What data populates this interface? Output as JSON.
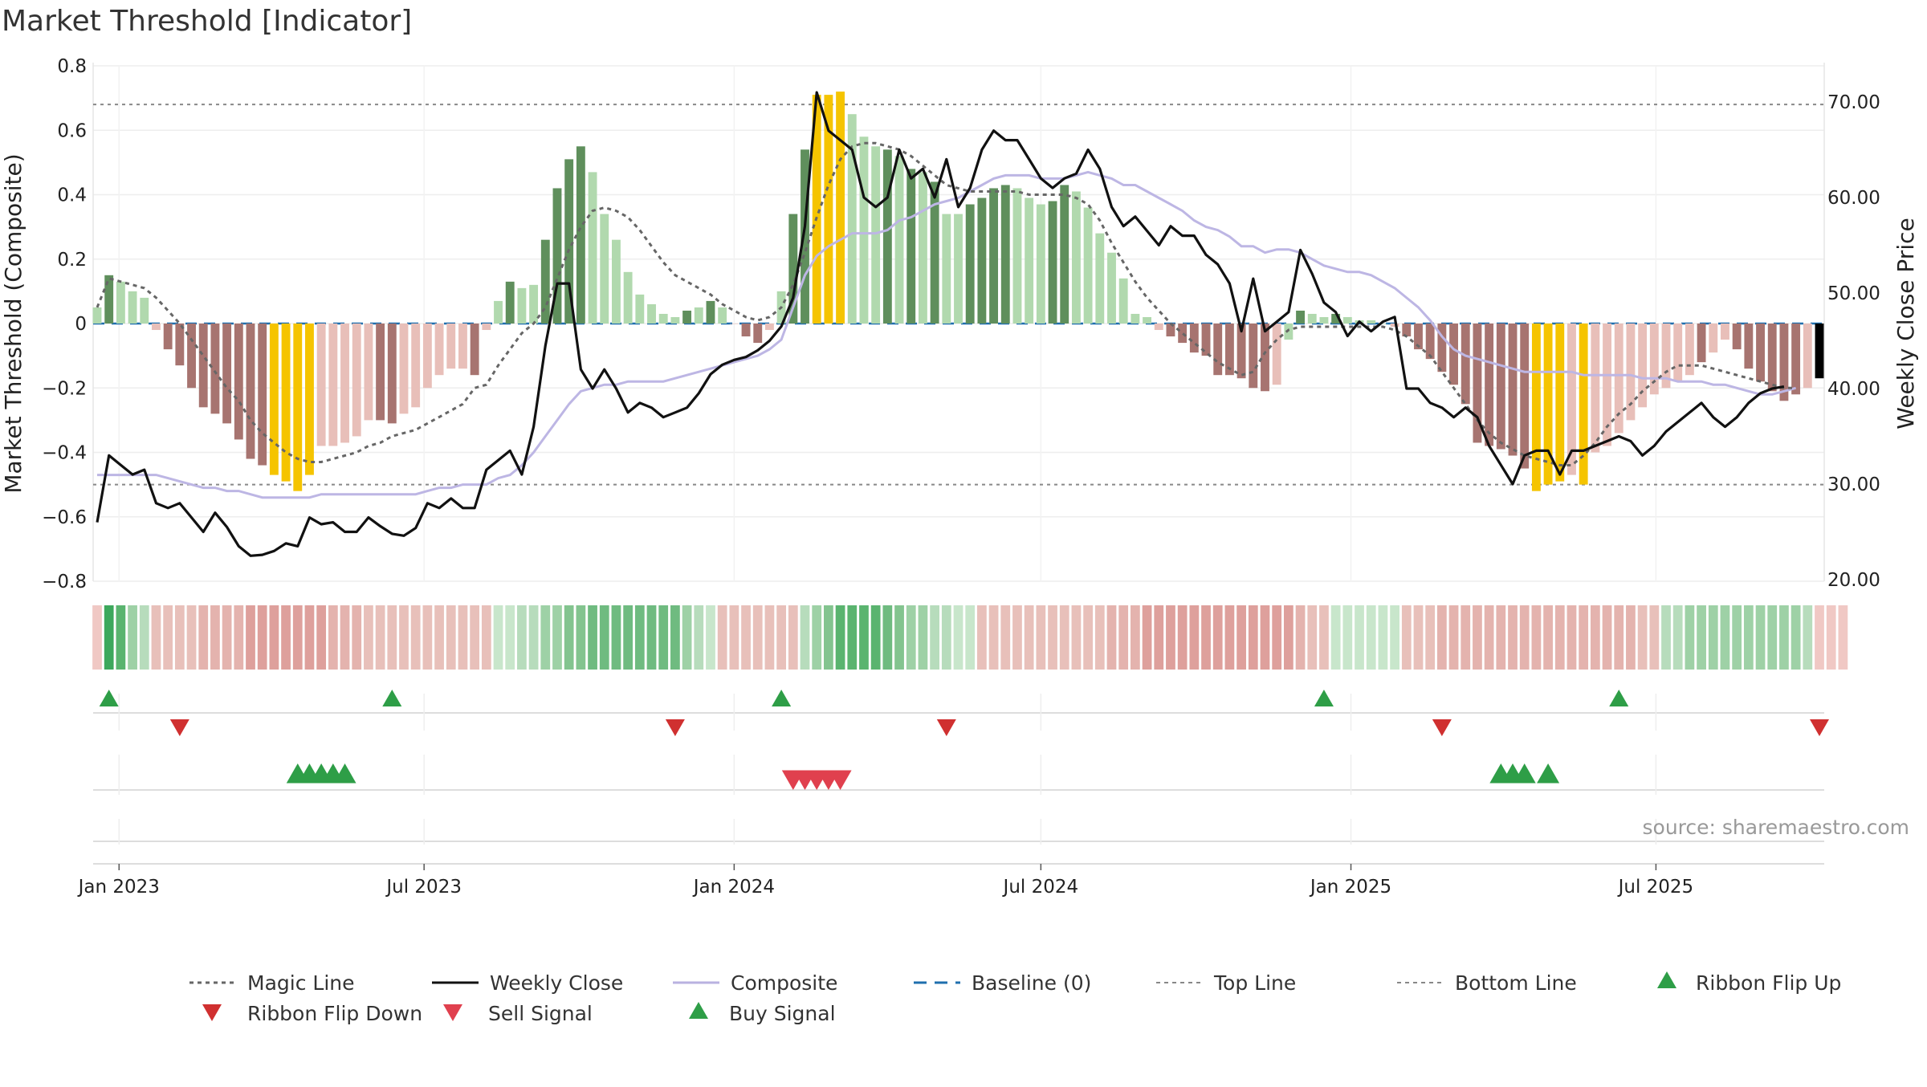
{
  "chart_data": {
    "type": "composite-indicator",
    "title": "Market Threshold [Indicator]",
    "ylabel_left": "Market Threshold (Composite)",
    "ylabel_right": "Weekly Close Price",
    "ylim_left": [
      -0.8,
      0.8
    ],
    "ylim_right": [
      20,
      70
    ],
    "left_ticks": [
      "0.8",
      "0.6",
      "0.4",
      "0.2",
      "0",
      "−0.2",
      "−0.4",
      "−0.6",
      "−0.8"
    ],
    "right_ticks": [
      "70.00",
      "60.00",
      "50.00",
      "40.00",
      "30.00",
      "20.00"
    ],
    "x_ticks": [
      "Jan 2023",
      "Jul 2023",
      "Jan 2024",
      "Jul 2024",
      "Jan 2025",
      "Jul 2025"
    ],
    "x_tick_dates": [
      "2023-01-01",
      "2023-07-01",
      "2024-01-01",
      "2024-07-01",
      "2025-01-01",
      "2025-07-01"
    ],
    "start_date": "2022-12-19",
    "top_line": 0.68,
    "bottom_line": -0.5,
    "baseline": 0,
    "grid": true,
    "legend_position": "bottom",
    "source": "source: sharemaestro.com",
    "composite_bars": [
      0.05,
      0.15,
      0.13,
      0.1,
      0.08,
      -0.02,
      -0.08,
      -0.13,
      -0.2,
      -0.26,
      -0.28,
      -0.31,
      -0.36,
      -0.42,
      -0.44,
      -0.47,
      -0.49,
      -0.52,
      -0.47,
      -0.38,
      -0.38,
      -0.37,
      -0.35,
      -0.3,
      -0.3,
      -0.31,
      -0.28,
      -0.26,
      -0.2,
      -0.16,
      -0.14,
      -0.14,
      -0.16,
      -0.02,
      0.07,
      0.13,
      0.11,
      0.12,
      0.26,
      0.42,
      0.51,
      0.55,
      0.47,
      0.34,
      0.26,
      0.16,
      0.09,
      0.06,
      0.03,
      0.02,
      0.04,
      0.05,
      0.07,
      0.05,
      0.0,
      -0.04,
      -0.06,
      -0.02,
      0.1,
      0.34,
      0.54,
      0.71,
      0.71,
      0.72,
      0.65,
      0.58,
      0.55,
      0.54,
      0.52,
      0.48,
      0.47,
      0.44,
      0.34,
      0.34,
      0.37,
      0.39,
      0.42,
      0.43,
      0.42,
      0.39,
      0.37,
      0.38,
      0.43,
      0.41,
      0.36,
      0.28,
      0.22,
      0.14,
      0.03,
      0.02,
      -0.02,
      -0.04,
      -0.06,
      -0.09,
      -0.1,
      -0.16,
      -0.16,
      -0.17,
      -0.2,
      -0.21,
      -0.19,
      -0.05,
      0.04,
      0.03,
      0.02,
      0.03,
      0.02,
      0.01,
      0.01,
      0.0,
      -0.01,
      -0.04,
      -0.08,
      -0.11,
      -0.15,
      -0.19,
      -0.25,
      -0.37,
      -0.38,
      -0.39,
      -0.41,
      -0.45,
      -0.52,
      -0.5,
      -0.49,
      -0.47,
      -0.5,
      -0.4,
      -0.38,
      -0.34,
      -0.3,
      -0.26,
      -0.22,
      -0.2,
      -0.18,
      -0.16,
      -0.12,
      -0.09,
      -0.05,
      -0.08,
      -0.14,
      -0.18,
      -0.21,
      -0.24,
      -0.22,
      -0.2,
      -0.17
    ],
    "bar_colors": [
      "#b1d9ae",
      "#5f8f5c",
      "#b1d9ae",
      "#b1d9ae",
      "#b1d9ae",
      "#e8bfb9",
      "#a77470",
      "#a77470",
      "#a77470",
      "#a77470",
      "#a77470",
      "#a77470",
      "#a77470",
      "#a77470",
      "#a77470",
      "#f5c400",
      "#f5c400",
      "#f5c400",
      "#f5c400",
      "#e8bfb9",
      "#e8bfb9",
      "#e8bfb9",
      "#e8bfb9",
      "#e8bfb9",
      "#a77470",
      "#a77470",
      "#e8bfb9",
      "#e8bfb9",
      "#e8bfb9",
      "#e8bfb9",
      "#e8bfb9",
      "#e8bfb9",
      "#a77470",
      "#e8bfb9",
      "#b1d9ae",
      "#5f8f5c",
      "#b1d9ae",
      "#b1d9ae",
      "#5f8f5c",
      "#5f8f5c",
      "#5f8f5c",
      "#5f8f5c",
      "#b1d9ae",
      "#b1d9ae",
      "#b1d9ae",
      "#b1d9ae",
      "#b1d9ae",
      "#b1d9ae",
      "#b1d9ae",
      "#b1d9ae",
      "#5f8f5c",
      "#b1d9ae",
      "#5f8f5c",
      "#b1d9ae",
      "#e8bfb9",
      "#a77470",
      "#a77470",
      "#e8bfb9",
      "#b1d9ae",
      "#5f8f5c",
      "#5f8f5c",
      "#f5c400",
      "#f5c400",
      "#f5c400",
      "#b1d9ae",
      "#b1d9ae",
      "#b1d9ae",
      "#5f8f5c",
      "#b1d9ae",
      "#5f8f5c",
      "#b1d9ae",
      "#5f8f5c",
      "#b1d9ae",
      "#b1d9ae",
      "#5f8f5c",
      "#5f8f5c",
      "#5f8f5c",
      "#5f8f5c",
      "#b1d9ae",
      "#b1d9ae",
      "#b1d9ae",
      "#5f8f5c",
      "#5f8f5c",
      "#b1d9ae",
      "#b1d9ae",
      "#b1d9ae",
      "#b1d9ae",
      "#b1d9ae",
      "#b1d9ae",
      "#b1d9ae",
      "#e8bfb9",
      "#a77470",
      "#a77470",
      "#a77470",
      "#a77470",
      "#a77470",
      "#a77470",
      "#a77470",
      "#a77470",
      "#a77470",
      "#e8bfb9",
      "#b1d9ae",
      "#5f8f5c",
      "#b1d9ae",
      "#b1d9ae",
      "#5f8f5c",
      "#b1d9ae",
      "#b1d9ae",
      "#b1d9ae",
      "#b1d9ae",
      "#e8bfb9",
      "#a77470",
      "#a77470",
      "#a77470",
      "#a77470",
      "#a77470",
      "#a77470",
      "#a77470",
      "#a77470",
      "#a77470",
      "#a77470",
      "#a77470",
      "#f5c400",
      "#f5c400",
      "#f5c400",
      "#e8bfb9",
      "#f5c400",
      "#e8bfb9",
      "#e8bfb9",
      "#e8bfb9",
      "#e8bfb9",
      "#e8bfb9",
      "#e8bfb9",
      "#e8bfb9",
      "#e8bfb9",
      "#e8bfb9",
      "#a77470",
      "#e8bfb9",
      "#e8bfb9",
      "#a77470",
      "#a77470",
      "#a77470",
      "#a77470",
      "#a77470",
      "#a77470",
      "#e8bfb9"
    ],
    "ribbon_colors": [
      "#f0c8c4",
      "#3da85c",
      "#5ab46f",
      "#9ed1a6",
      "#b7dcbc",
      "#e8c0ba",
      "#e8c0ba",
      "#e8c0ba",
      "#e8c0ba",
      "#e4b3ae",
      "#e4b3ae",
      "#e4b3ae",
      "#e4b3ae",
      "#dea09c",
      "#dea09c",
      "#dea09c",
      "#dea09c",
      "#dea09c",
      "#dea09c",
      "#dea09c",
      "#e4b3ae",
      "#e4b3ae",
      "#e4b3ae",
      "#e8c0ba",
      "#e8c0ba",
      "#e8c0ba",
      "#e8c0ba",
      "#e8c0ba",
      "#e8c0ba",
      "#e8c0ba",
      "#e8c0ba",
      "#e8c0ba",
      "#e8c0ba",
      "#e8c0ba",
      "#c8e6cb",
      "#c8e6cb",
      "#b7dcbc",
      "#b7dcbc",
      "#9ed1a6",
      "#9ed1a6",
      "#83c48f",
      "#83c48f",
      "#6fbb80",
      "#6fbb80",
      "#6fbb80",
      "#6fbb80",
      "#6fbb80",
      "#6fbb80",
      "#6fbb80",
      "#6fbb80",
      "#9ed1a6",
      "#b7dcbc",
      "#c8e6cb",
      "#e8c0ba",
      "#e8c0ba",
      "#e8c0ba",
      "#e8c0ba",
      "#e8c0ba",
      "#e8c0ba",
      "#e8c0ba",
      "#b7dcbc",
      "#9ed1a6",
      "#83c48f",
      "#5ab46f",
      "#5ab46f",
      "#5ab46f",
      "#5ab46f",
      "#6fbb80",
      "#83c48f",
      "#9ed1a6",
      "#9ed1a6",
      "#b7dcbc",
      "#b7dcbc",
      "#c8e6cb",
      "#c8e6cb",
      "#e8c0ba",
      "#e8c0ba",
      "#e8c0ba",
      "#e8c0ba",
      "#e8c0ba",
      "#e8c0ba",
      "#e8c0ba",
      "#e8c0ba",
      "#e8c0ba",
      "#e8c0ba",
      "#e8c0ba",
      "#e4b3ae",
      "#e4b3ae",
      "#e4b3ae",
      "#dea09c",
      "#dea09c",
      "#dea09c",
      "#dea09c",
      "#dea09c",
      "#dea09c",
      "#dea09c",
      "#dea09c",
      "#dea09c",
      "#dea09c",
      "#dea09c",
      "#dea09c",
      "#dea09c",
      "#e4b3ae",
      "#e8c0ba",
      "#e8c0ba",
      "#c8e6cb",
      "#c8e6cb",
      "#c8e6cb",
      "#c8e6cb",
      "#c8e6cb",
      "#c8e6cb",
      "#e8c0ba",
      "#e8c0ba",
      "#e8c0ba",
      "#e4b3ae",
      "#e4b3ae",
      "#e4b3ae",
      "#e4b3ae",
      "#e4b3ae",
      "#e4b3ae",
      "#e4b3ae",
      "#e4b3ae",
      "#e4b3ae",
      "#e4b3ae",
      "#e4b3ae",
      "#e4b3ae",
      "#e4b3ae",
      "#e4b3ae",
      "#e4b3ae",
      "#e4b3ae",
      "#e4b3ae",
      "#e8c0ba",
      "#e8c0ba",
      "#b7dcbc",
      "#b7dcbc",
      "#9ed1a6",
      "#9ed1a6",
      "#9ed1a6",
      "#9ed1a6",
      "#9ed1a6",
      "#9ed1a6",
      "#9ed1a6",
      "#9ed1a6",
      "#9ed1a6",
      "#9ed1a6",
      "#b7dcbc",
      "#f0c8c4",
      "#f0c8c4",
      "#f0c8c4"
    ],
    "magic_line": [
      0.05,
      0.14,
      0.13,
      0.12,
      0.11,
      0.08,
      0.04,
      0.0,
      -0.05,
      -0.1,
      -0.15,
      -0.2,
      -0.24,
      -0.3,
      -0.34,
      -0.37,
      -0.4,
      -0.42,
      -0.43,
      -0.43,
      -0.42,
      -0.41,
      -0.4,
      -0.38,
      -0.37,
      -0.35,
      -0.34,
      -0.33,
      -0.31,
      -0.29,
      -0.27,
      -0.25,
      -0.2,
      -0.19,
      -0.13,
      -0.08,
      -0.03,
      0.0,
      0.05,
      0.14,
      0.23,
      0.3,
      0.35,
      0.36,
      0.35,
      0.33,
      0.29,
      0.24,
      0.19,
      0.15,
      0.13,
      0.11,
      0.09,
      0.06,
      0.04,
      0.02,
      0.01,
      0.02,
      0.05,
      0.12,
      0.22,
      0.33,
      0.43,
      0.51,
      0.55,
      0.56,
      0.56,
      0.55,
      0.54,
      0.52,
      0.49,
      0.46,
      0.43,
      0.42,
      0.41,
      0.41,
      0.41,
      0.41,
      0.41,
      0.4,
      0.4,
      0.4,
      0.4,
      0.39,
      0.37,
      0.32,
      0.25,
      0.19,
      0.13,
      0.08,
      0.04,
      0.0,
      -0.03,
      -0.06,
      -0.09,
      -0.12,
      -0.14,
      -0.16,
      -0.15,
      -0.09,
      -0.05,
      -0.02,
      -0.01,
      -0.01,
      -0.01,
      -0.01,
      -0.01,
      -0.01,
      -0.01,
      -0.01,
      -0.02,
      -0.04,
      -0.07,
      -0.1,
      -0.15,
      -0.2,
      -0.25,
      -0.3,
      -0.34,
      -0.37,
      -0.39,
      -0.41,
      -0.42,
      -0.43,
      -0.44,
      -0.44,
      -0.41,
      -0.37,
      -0.32,
      -0.28,
      -0.25,
      -0.21,
      -0.18,
      -0.15,
      -0.13,
      -0.13,
      -0.13,
      -0.14,
      -0.15,
      -0.16,
      -0.17,
      -0.18,
      -0.19,
      -0.2,
      -0.2
    ],
    "composite_line": [
      -0.47,
      -0.47,
      -0.47,
      -0.47,
      -0.47,
      -0.47,
      -0.48,
      -0.49,
      -0.5,
      -0.51,
      -0.51,
      -0.52,
      -0.52,
      -0.53,
      -0.54,
      -0.54,
      -0.54,
      -0.54,
      -0.54,
      -0.53,
      -0.53,
      -0.53,
      -0.53,
      -0.53,
      -0.53,
      -0.53,
      -0.53,
      -0.53,
      -0.52,
      -0.51,
      -0.51,
      -0.5,
      -0.5,
      -0.5,
      -0.48,
      -0.47,
      -0.44,
      -0.4,
      -0.35,
      -0.3,
      -0.25,
      -0.21,
      -0.2,
      -0.19,
      -0.19,
      -0.18,
      -0.18,
      -0.18,
      -0.18,
      -0.17,
      -0.16,
      -0.15,
      -0.14,
      -0.13,
      -0.12,
      -0.11,
      -0.1,
      -0.08,
      -0.05,
      0.05,
      0.15,
      0.21,
      0.24,
      0.26,
      0.28,
      0.28,
      0.28,
      0.29,
      0.32,
      0.33,
      0.35,
      0.37,
      0.38,
      0.39,
      0.41,
      0.43,
      0.45,
      0.46,
      0.46,
      0.46,
      0.45,
      0.45,
      0.45,
      0.46,
      0.47,
      0.46,
      0.45,
      0.43,
      0.43,
      0.41,
      0.39,
      0.37,
      0.35,
      0.32,
      0.3,
      0.29,
      0.27,
      0.24,
      0.24,
      0.22,
      0.23,
      0.23,
      0.22,
      0.2,
      0.18,
      0.17,
      0.16,
      0.16,
      0.15,
      0.13,
      0.11,
      0.08,
      0.05,
      0.01,
      -0.04,
      -0.08,
      -0.1,
      -0.11,
      -0.12,
      -0.13,
      -0.14,
      -0.15,
      -0.15,
      -0.15,
      -0.15,
      -0.15,
      -0.16,
      -0.16,
      -0.16,
      -0.16,
      -0.16,
      -0.17,
      -0.17,
      -0.17,
      -0.18,
      -0.18,
      -0.18,
      -0.19,
      -0.19,
      -0.2,
      -0.21,
      -0.22,
      -0.22,
      -0.21,
      -0.2
    ],
    "weekly_close": [
      26.0,
      33.0,
      32.0,
      31.0,
      31.5,
      28.0,
      27.5,
      28.0,
      26.5,
      25.0,
      27.0,
      25.5,
      23.5,
      22.5,
      22.6,
      23.0,
      23.8,
      23.5,
      26.5,
      25.8,
      26.0,
      25.0,
      25.0,
      26.5,
      25.6,
      24.8,
      24.6,
      25.4,
      28.0,
      27.5,
      28.5,
      27.5,
      27.5,
      31.5,
      32.5,
      33.5,
      31.0,
      36.0,
      44.5,
      51.0,
      51.0,
      42.0,
      40.0,
      42.0,
      40.0,
      37.5,
      38.5,
      38.0,
      37.0,
      37.5,
      38.0,
      39.5,
      41.5,
      42.5,
      43.0,
      43.3,
      44.0,
      45.0,
      46.5,
      49.5,
      57.0,
      71.0,
      67.0,
      66.0,
      65.0,
      60.0,
      59.0,
      60.0,
      65.0,
      62.0,
      63.0,
      60.0,
      64.0,
      59.0,
      61.0,
      65.0,
      67.0,
      66.0,
      66.0,
      64.0,
      62.0,
      61.0,
      62.0,
      62.5,
      65.0,
      63.0,
      59.0,
      57.0,
      58.0,
      56.5,
      55.0,
      57.0,
      56.0,
      56.0,
      54.0,
      53.0,
      51.0,
      46.0,
      51.5,
      46.0,
      47.0,
      48.0,
      54.5,
      52.0,
      49.0,
      48.0,
      45.5,
      47.0,
      46.0,
      47.0,
      47.5,
      40.0,
      40.0,
      38.5,
      38.0,
      37.0,
      38.0,
      37.0,
      34.0,
      32.0,
      30.0,
      33.0,
      33.5,
      33.5,
      31.0,
      33.5,
      33.5,
      34.0,
      34.5,
      35.0,
      34.5,
      33.0,
      34.0,
      35.5,
      36.5,
      37.5,
      38.5,
      37.0,
      36.0,
      37.0,
      38.5,
      39.5,
      40.0,
      40.2
    ],
    "ribbon_flip_up": [
      "2022-12-26",
      "2023-06-12",
      "2024-01-29",
      "2024-12-16",
      "2025-06-09"
    ],
    "ribbon_flip_down": [
      "2023-02-06",
      "2023-11-27",
      "2024-05-06",
      "2025-02-24",
      "2025-10-06"
    ],
    "buy_signal": [
      "2023-04-17",
      "2023-04-24",
      "2023-05-01",
      "2023-05-08",
      "2023-05-15",
      "2025-03-31",
      "2025-04-07",
      "2025-04-14",
      "2025-04-28"
    ],
    "sell_signal": [
      "2024-02-05",
      "2024-02-12",
      "2024-02-19",
      "2024-02-26",
      "2024-03-04"
    ],
    "legend": [
      {
        "label": "Magic Line",
        "style": "dotted",
        "color": "#666666"
      },
      {
        "label": "Weekly Close",
        "style": "solid",
        "color": "#111111"
      },
      {
        "label": "Composite",
        "style": "solid",
        "color": "#b9b2e0"
      },
      {
        "label": "Baseline (0)",
        "style": "dashed",
        "color": "#1f6fae"
      },
      {
        "label": "Top Line",
        "style": "dotted",
        "color": "#888888"
      },
      {
        "label": "Bottom Line",
        "style": "dotted",
        "color": "#888888"
      },
      {
        "label": "Ribbon Flip Up",
        "style": "triangle-up",
        "color": "#2e9e47"
      },
      {
        "label": "Ribbon Flip Down",
        "style": "triangle-down",
        "color": "#d03030"
      },
      {
        "label": "Sell Signal",
        "style": "triangle-down",
        "color": "#e0404e"
      },
      {
        "label": "Buy Signal",
        "style": "triangle-up",
        "color": "#2e9e47"
      }
    ]
  }
}
